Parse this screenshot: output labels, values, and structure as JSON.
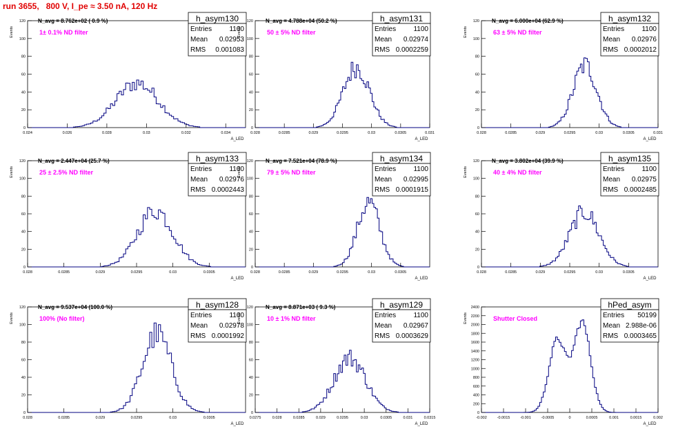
{
  "page_title": "run 3655,   800 V, I_pe ≈ 3.50 nA, 120 Hz",
  "stats_labels": {
    "entries": "Entries",
    "mean": "Mean",
    "rms": "RMS"
  },
  "colors": {
    "title": "#e00000",
    "annotation": "#ff00ff",
    "histogram": "#000080",
    "axis": "#000000"
  },
  "chart_data": [
    {
      "type": "bar",
      "name": "h_asym130",
      "entries": "1100",
      "mean": "0.02953",
      "rms": "0.001083",
      "navg_text": "N_avg = 8.762e+02 ( 0.9 %)",
      "filter_text": "1± 0.1% ND filter",
      "ylabel": "Events",
      "xlabel": "A_LED",
      "xlim": [
        0.024,
        0.035
      ],
      "ylim": [
        0,
        120
      ],
      "xticks": [
        "0.024",
        "0.026",
        "0.028",
        "0.03",
        "0.032",
        "0.034"
      ],
      "xtick_values": [
        0.024,
        0.026,
        0.028,
        0.03,
        0.032,
        0.034
      ],
      "yticks": [
        "0",
        "20",
        "40",
        "60",
        "80",
        "100",
        "120"
      ],
      "ytick_values": [
        0,
        20,
        40,
        60,
        80,
        100,
        120
      ],
      "hist_center": 0.02953,
      "hist_sigma": 0.001083,
      "hist_peak": 50
    },
    {
      "type": "bar",
      "name": "h_asym131",
      "entries": "1100",
      "mean": "0.02974",
      "rms": "0.0002259",
      "navg_text": "N_avg = 4.788e+04 (50.2 %)",
      "filter_text": "50 ± 5% ND filter",
      "ylabel": "Events",
      "xlabel": "A_LED",
      "xlim": [
        0.028,
        0.031
      ],
      "ylim": [
        0,
        120
      ],
      "xticks": [
        "0.028",
        "0.0285",
        "0.029",
        "0.0295",
        "0.03",
        "0.0305",
        "0.031"
      ],
      "xtick_values": [
        0.028,
        0.0285,
        0.029,
        0.0295,
        0.03,
        0.0305,
        0.031
      ],
      "yticks": [
        "0",
        "20",
        "40",
        "60",
        "80",
        "100",
        "120"
      ],
      "ytick_values": [
        0,
        20,
        40,
        60,
        80,
        100,
        120
      ],
      "hist_center": 0.02974,
      "hist_sigma": 0.0002259,
      "hist_peak": 68
    },
    {
      "type": "bar",
      "name": "h_asym132",
      "entries": "1100",
      "mean": "0.02976",
      "rms": "0.0002012",
      "navg_text": "N_avg = 6.000e+04 (62.9 %)",
      "filter_text": "63 ± 5% ND filter",
      "ylabel": "Events",
      "xlabel": "A_LED",
      "xlim": [
        0.028,
        0.031
      ],
      "ylim": [
        0,
        120
      ],
      "xticks": [
        "0.028",
        "0.0285",
        "0.029",
        "0.0295",
        "0.03",
        "0.0305",
        "0.031"
      ],
      "xtick_values": [
        0.028,
        0.0285,
        0.029,
        0.0295,
        0.03,
        0.0305,
        0.031
      ],
      "yticks": [
        "0",
        "20",
        "40",
        "60",
        "80",
        "100",
        "120"
      ],
      "ytick_values": [
        0,
        20,
        40,
        60,
        80,
        100,
        120
      ],
      "hist_center": 0.02976,
      "hist_sigma": 0.0002012,
      "hist_peak": 70
    },
    {
      "type": "bar",
      "name": "h_asym133",
      "entries": "1100",
      "mean": "0.02976",
      "rms": "0.0002443",
      "navg_text": "N_avg = 2.447e+04 (25.7 %)",
      "filter_text": "25 ± 2.5% ND filter",
      "ylabel": "Events",
      "xlabel": "A_LED",
      "xlim": [
        0.028,
        0.031
      ],
      "ylim": [
        0,
        120
      ],
      "xticks": [
        "0.028",
        "0.0285",
        "0.029",
        "0.0295",
        "0.03",
        "0.0305"
      ],
      "xtick_values": [
        0.028,
        0.0285,
        0.029,
        0.0295,
        0.03,
        0.0305
      ],
      "yticks": [
        "0",
        "20",
        "40",
        "60",
        "80",
        "100",
        "120"
      ],
      "ytick_values": [
        0,
        20,
        40,
        60,
        80,
        100,
        120
      ],
      "hist_center": 0.02976,
      "hist_sigma": 0.0002443,
      "hist_peak": 64
    },
    {
      "type": "bar",
      "name": "h_asym134",
      "entries": "1100",
      "mean": "0.02995",
      "rms": "0.0001915",
      "navg_text": "N_avg = 7.521e+04 (78.9 %)",
      "filter_text": "79 ± 5% ND filter",
      "ylabel": "Events",
      "xlabel": "A_LED",
      "xlim": [
        0.028,
        0.031
      ],
      "ylim": [
        0,
        120
      ],
      "xticks": [
        "0.028",
        "0.0285",
        "0.029",
        "0.0295",
        "0.03",
        "0.0305"
      ],
      "xtick_values": [
        0.028,
        0.0285,
        0.029,
        0.0295,
        0.03,
        0.0305
      ],
      "yticks": [
        "0",
        "20",
        "40",
        "60",
        "80",
        "100",
        "120"
      ],
      "ytick_values": [
        0,
        20,
        40,
        60,
        80,
        100,
        120
      ],
      "hist_center": 0.02995,
      "hist_sigma": 0.0001915,
      "hist_peak": 73
    },
    {
      "type": "bar",
      "name": "h_asym135",
      "entries": "1100",
      "mean": "0.02975",
      "rms": "0.0002485",
      "navg_text": "N_avg = 3.802e+04 (39.9 %)",
      "filter_text": "40 ± 4% ND filter",
      "ylabel": "Events",
      "xlabel": "A_LED",
      "xlim": [
        0.028,
        0.031
      ],
      "ylim": [
        0,
        120
      ],
      "xticks": [
        "0.028",
        "0.0285",
        "0.029",
        "0.0295",
        "0.03",
        "0.0305"
      ],
      "xtick_values": [
        0.028,
        0.0285,
        0.029,
        0.0295,
        0.03,
        0.0305
      ],
      "yticks": [
        "0",
        "20",
        "40",
        "60",
        "80",
        "100",
        "120"
      ],
      "ytick_values": [
        0,
        20,
        40,
        60,
        80,
        100,
        120
      ],
      "hist_center": 0.02975,
      "hist_sigma": 0.0002485,
      "hist_peak": 62
    },
    {
      "type": "bar",
      "name": "h_asym128",
      "entries": "1100",
      "mean": "0.02978",
      "rms": "0.0001992",
      "navg_text": "N_avg = 9.537e+04 (100.0 %)",
      "filter_text": "100% (No filter)",
      "ylabel": "Events",
      "xlabel": "A_LED",
      "xlim": [
        0.028,
        0.031
      ],
      "ylim": [
        0,
        120
      ],
      "xticks": [
        "0.028",
        "0.0285",
        "0.029",
        "0.0295",
        "0.03",
        "0.0305"
      ],
      "xtick_values": [
        0.028,
        0.0285,
        0.029,
        0.0295,
        0.03,
        0.0305
      ],
      "yticks": [
        "0",
        "20",
        "40",
        "60",
        "80",
        "100",
        "120"
      ],
      "ytick_values": [
        0,
        20,
        40,
        60,
        80,
        100,
        120
      ],
      "hist_center": 0.02978,
      "hist_sigma": 0.0001992,
      "hist_peak": 89
    },
    {
      "type": "bar",
      "name": "h_asym129",
      "entries": "1100",
      "mean": "0.02967",
      "rms": "0.0003629",
      "navg_text": "N_avg = 8.871e+03 ( 9.3 %)",
      "filter_text": "10 ± 1% ND filter",
      "ylabel": "Events",
      "xlabel": "A_LED",
      "xlim": [
        0.0275,
        0.0315
      ],
      "ylim": [
        0,
        120
      ],
      "xticks": [
        "0.0275",
        "0.028",
        "0.0285",
        "0.029",
        "0.0295",
        "0.03",
        "0.0305",
        "0.031",
        "0.0315"
      ],
      "xtick_values": [
        0.0275,
        0.028,
        0.0285,
        0.029,
        0.0295,
        0.03,
        0.0305,
        0.031,
        0.0315
      ],
      "yticks": [
        "0",
        "20",
        "40",
        "60",
        "80",
        "100",
        "120"
      ],
      "ytick_values": [
        0,
        20,
        40,
        60,
        80,
        100,
        120
      ],
      "hist_center": 0.02967,
      "hist_sigma": 0.0003629,
      "hist_peak": 62
    },
    {
      "type": "bar",
      "name": "hPed_asym",
      "entries": "50199",
      "mean": "2.988e-06",
      "rms": "0.0003465",
      "navg_text": "",
      "filter_text": "Shutter Closed",
      "ylabel": "Events",
      "xlabel": "A_LED",
      "xlim": [
        -0.002,
        0.002
      ],
      "ylim": [
        0,
        2400
      ],
      "xticks": [
        "-0.002",
        "-0.0015",
        "-0.001",
        "-0.0005",
        "0",
        "0.0005",
        "0.001",
        "0.0015",
        "0.002"
      ],
      "xtick_values": [
        -0.002,
        -0.0015,
        -0.001,
        -0.0005,
        0,
        0.0005,
        0.001,
        0.0015,
        0.002
      ],
      "yticks": [
        "0",
        "200",
        "400",
        "600",
        "800",
        "1000",
        "1200",
        "1400",
        "1600",
        "1800",
        "2000",
        "2200",
        "2400"
      ],
      "ytick_values": [
        0,
        200,
        400,
        600,
        800,
        1000,
        1200,
        1400,
        1600,
        1800,
        2000,
        2200,
        2400
      ],
      "hist_center": 2.988e-06,
      "hist_sigma": 0.0003465,
      "hist_peak": 2150,
      "bimodal": true
    }
  ]
}
